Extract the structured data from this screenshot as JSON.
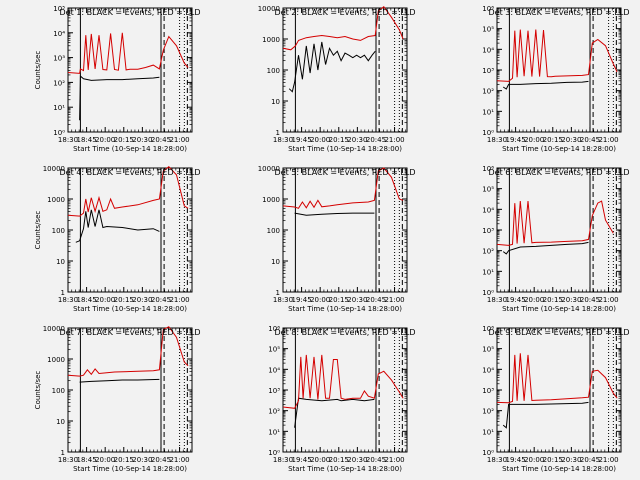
{
  "chart_data": [
    {
      "type": "line",
      "title": "Det 1: BLACK = Events, RED = LLD",
      "ylabel": "Counts/sec",
      "xlabel": "Start Time (10-Sep-14 18:28:00)",
      "yscale": "log",
      "ylim": [
        1,
        100000
      ],
      "ytick_labels": [
        "10⁰",
        "10¹",
        "10²",
        "10³",
        "10⁴",
        "10⁵"
      ],
      "ytick_values": [
        1,
        10,
        100,
        1000,
        10000,
        100000
      ],
      "xlim": [
        "18:30",
        "21:10"
      ],
      "xtick_labels": [
        "18:30",
        "18:45",
        "20:00",
        "20:15",
        "20:30",
        "20:45",
        "21:00"
      ],
      "series": [
        {
          "name": "Events",
          "color": "#000000",
          "x": [
            "18:45",
            "18:46",
            "18:50",
            "19:00",
            "19:20",
            "19:40",
            "20:00",
            "20:20",
            "20:28"
          ],
          "y": [
            3,
            180,
            140,
            120,
            130,
            130,
            140,
            150,
            160
          ]
        },
        {
          "name": "LLD",
          "color": "#d40000",
          "x": [
            "18:30",
            "18:45",
            "18:46",
            "18:50",
            "18:53",
            "18:56",
            "19:00",
            "19:05",
            "19:10",
            "19:15",
            "19:20",
            "19:25",
            "19:30",
            "19:35",
            "19:40",
            "19:45",
            "19:50",
            "20:00",
            "20:10",
            "20:20",
            "20:28",
            "20:33",
            "20:40",
            "20:50",
            "21:00",
            "21:05"
          ],
          "y": [
            250,
            230,
            350,
            300,
            8000,
            320,
            9000,
            350,
            8000,
            330,
            320,
            9500,
            330,
            310,
            10000,
            320,
            340,
            340,
            400,
            500,
            350,
            2000,
            7000,
            3000,
            600,
            400
          ]
        }
      ]
    },
    {
      "type": "line",
      "title": "Det 2: BLACK = Events, RED = LLD",
      "ylabel": "",
      "xlabel": "Start Time (10-Sep-14 18:28:00)",
      "yscale": "log",
      "ylim": [
        1,
        10000
      ],
      "ytick_labels": [
        "1",
        "10",
        "100",
        "1000",
        "10000"
      ],
      "ytick_values": [
        1,
        10,
        100,
        1000,
        10000
      ],
      "xlim": [
        "18:30",
        "21:10"
      ],
      "xtick_labels": [
        "18:30",
        "19:45",
        "20:00",
        "20:15",
        "20:30",
        "20:45",
        "21:00"
      ],
      "series": [
        {
          "name": "Events",
          "color": "#000000",
          "x": [
            "18:38",
            "18:42",
            "18:45",
            "18:50",
            "18:55",
            "19:00",
            "19:05",
            "19:10",
            "19:15",
            "19:20",
            "19:25",
            "19:30",
            "19:35",
            "19:40",
            "19:45",
            "19:50",
            "19:55",
            "20:00",
            "20:05",
            "20:10",
            "20:15",
            "20:20",
            "20:25",
            "20:29"
          ],
          "y": [
            25,
            20,
            40,
            300,
            50,
            600,
            80,
            700,
            100,
            800,
            150,
            500,
            300,
            400,
            200,
            350,
            300,
            250,
            300,
            250,
            300,
            200,
            300,
            400
          ]
        },
        {
          "name": "LLD",
          "color": "#d40000",
          "x": [
            "18:30",
            "18:40",
            "18:46",
            "18:50",
            "19:00",
            "19:10",
            "19:20",
            "19:30",
            "19:40",
            "19:50",
            "20:00",
            "20:10",
            "20:20",
            "20:29",
            "20:33",
            "20:40",
            "20:50",
            "21:00",
            "21:05"
          ],
          "y": [
            500,
            450,
            600,
            900,
            1100,
            1200,
            1300,
            1200,
            1100,
            1200,
            1000,
            900,
            1200,
            1300,
            8000,
            11000,
            5000,
            2000,
            1000
          ]
        }
      ]
    },
    {
      "type": "line",
      "title": "Det 3: BLACK = Events, RED = LLD",
      "ylabel": "",
      "xlabel": "Start Time (10-Sep-14 18:28:00)",
      "yscale": "log",
      "ylim": [
        1,
        1000000
      ],
      "ytick_labels": [
        "10⁰",
        "10¹",
        "10²",
        "10³",
        "10⁴",
        "10⁵",
        "10⁶"
      ],
      "ytick_values": [
        1,
        10,
        100,
        1000,
        10000,
        100000,
        1000000
      ],
      "xlim": [
        "18:30",
        "21:10"
      ],
      "xtick_labels": [
        "18:30",
        "19:45",
        "20:00",
        "20:15",
        "20:30",
        "20:45",
        "21:00"
      ],
      "series": [
        {
          "name": "Events",
          "color": "#000000",
          "x": [
            "18:38",
            "18:42",
            "18:45",
            "19:00",
            "19:20",
            "19:40",
            "20:00",
            "20:20",
            "20:28"
          ],
          "y": [
            150,
            120,
            200,
            200,
            220,
            230,
            250,
            260,
            280
          ]
        },
        {
          "name": "LLD",
          "color": "#d40000",
          "x": [
            "18:30",
            "18:45",
            "18:50",
            "18:53",
            "18:56",
            "19:00",
            "19:05",
            "19:10",
            "19:15",
            "19:20",
            "19:25",
            "19:30",
            "19:35",
            "19:40",
            "19:45",
            "20:00",
            "20:20",
            "20:28",
            "20:33",
            "20:40",
            "20:50",
            "21:00",
            "21:05"
          ],
          "y": [
            300,
            280,
            400,
            80000,
            450,
            90000,
            500,
            80000,
            480,
            90000,
            480,
            85000,
            480,
            470,
            500,
            520,
            550,
            600,
            20000,
            30000,
            15000,
            2000,
            800
          ]
        }
      ]
    },
    {
      "type": "line",
      "title": "Det 4: BLACK = Events, RED = LLD",
      "ylabel": "Counts/sec",
      "xlabel": "Start Time (10-Sep-14 18:28:00)",
      "yscale": "log",
      "ylim": [
        1,
        10000
      ],
      "ytick_labels": [
        "1",
        "10",
        "100",
        "1000",
        "10000"
      ],
      "ytick_values": [
        1,
        10,
        100,
        1000,
        10000
      ],
      "xlim": [
        "18:30",
        "21:10"
      ],
      "xtick_labels": [
        "18:30",
        "18:45",
        "20:00",
        "20:15",
        "20:30",
        "20:45",
        "21:00"
      ],
      "series": [
        {
          "name": "Events",
          "color": "#000000",
          "x": [
            "18:40",
            "18:45",
            "18:50",
            "18:53",
            "18:56",
            "19:00",
            "19:05",
            "19:10",
            "19:15",
            "19:20",
            "19:40",
            "20:00",
            "20:20",
            "20:28"
          ],
          "y": [
            40,
            45,
            110,
            400,
            120,
            450,
            130,
            450,
            120,
            130,
            120,
            100,
            110,
            90
          ]
        },
        {
          "name": "LLD",
          "color": "#d40000",
          "x": [
            "18:30",
            "18:45",
            "18:50",
            "18:53",
            "18:56",
            "19:00",
            "19:05",
            "19:10",
            "19:15",
            "19:20",
            "19:25",
            "19:30",
            "19:40",
            "20:00",
            "20:20",
            "20:28",
            "20:33",
            "20:40",
            "20:50",
            "21:00",
            "21:05"
          ],
          "y": [
            300,
            280,
            350,
            1000,
            380,
            1100,
            400,
            1100,
            400,
            450,
            1000,
            500,
            550,
            650,
            900,
            1000,
            8000,
            11000,
            6000,
            600,
            500
          ]
        }
      ]
    },
    {
      "type": "line",
      "title": "Det 5: BLACK = Events, RED = LLD",
      "ylabel": "",
      "xlabel": "Start Time (10-Sep-14 18:28:00)",
      "yscale": "log",
      "ylim": [
        1,
        10000
      ],
      "ytick_labels": [
        "1",
        "10",
        "100",
        "1000",
        "10000"
      ],
      "ytick_values": [
        1,
        10,
        100,
        1000,
        10000
      ],
      "xlim": [
        "18:30",
        "21:10"
      ],
      "xtick_labels": [
        "18:30",
        "19:45",
        "20:00",
        "20:15",
        "20:30",
        "20:45",
        "21:00"
      ],
      "series": [
        {
          "name": "Events",
          "color": "#000000",
          "x": [
            "18:45",
            "19:00",
            "19:20",
            "19:40",
            "20:00",
            "20:28"
          ],
          "y": [
            350,
            300,
            320,
            340,
            350,
            350
          ]
        },
        {
          "name": "LLD",
          "color": "#d40000",
          "x": [
            "18:30",
            "18:45",
            "18:50",
            "18:55",
            "19:00",
            "19:05",
            "19:10",
            "19:15",
            "19:20",
            "19:30",
            "19:40",
            "20:00",
            "20:20",
            "20:28",
            "20:33",
            "20:40",
            "20:50",
            "21:00",
            "21:05"
          ],
          "y": [
            600,
            550,
            500,
            800,
            520,
            850,
            540,
            900,
            560,
            600,
            650,
            750,
            800,
            900,
            8000,
            10000,
            5000,
            1000,
            900
          ]
        }
      ]
    },
    {
      "type": "line",
      "title": "Det 6: BLACK = Events, RED = LLD",
      "ylabel": "",
      "xlabel": "Start Time (10-Sep-14 18:28:00)",
      "yscale": "log",
      "ylim": [
        1,
        1000000
      ],
      "ytick_labels": [
        "10⁰",
        "10¹",
        "10²",
        "10³",
        "10⁴",
        "10⁵",
        "10⁶"
      ],
      "ytick_values": [
        1,
        10,
        100,
        1000,
        10000,
        100000,
        1000000
      ],
      "xlim": [
        "18:30",
        "21:10"
      ],
      "xtick_labels": [
        "18:30",
        "19:45",
        "20:00",
        "20:15",
        "20:30",
        "20:45",
        "21:00"
      ],
      "series": [
        {
          "name": "Events",
          "color": "#000000",
          "x": [
            "18:38",
            "18:42",
            "18:45",
            "19:00",
            "19:20",
            "19:40",
            "20:00",
            "20:20",
            "20:28"
          ],
          "y": [
            90,
            70,
            100,
            150,
            160,
            180,
            200,
            220,
            250
          ]
        },
        {
          "name": "LLD",
          "color": "#d40000",
          "x": [
            "18:30",
            "18:45",
            "18:50",
            "18:53",
            "18:56",
            "19:00",
            "19:05",
            "19:10",
            "19:15",
            "19:20",
            "19:40",
            "20:00",
            "20:20",
            "20:28",
            "20:33",
            "20:40",
            "20:45",
            "20:50",
            "21:00"
          ],
          "y": [
            200,
            180,
            200,
            20000,
            220,
            25000,
            230,
            25000,
            240,
            250,
            260,
            280,
            300,
            350,
            5000,
            20000,
            25000,
            3000,
            700
          ]
        }
      ]
    },
    {
      "type": "line",
      "title": "Det 7: BLACK = Events, RED = LLD",
      "ylabel": "Counts/sec",
      "xlabel": "Start Time (10-Sep-14 18:28:00)",
      "yscale": "log",
      "ylim": [
        1,
        10000
      ],
      "ytick_labels": [
        "1",
        "10",
        "100",
        "1000",
        "10000"
      ],
      "ytick_values": [
        1,
        10,
        100,
        1000,
        10000
      ],
      "xlim": [
        "18:30",
        "21:10"
      ],
      "xtick_labels": [
        "18:30",
        "18:45",
        "20:00",
        "20:15",
        "20:30",
        "20:45",
        "21:00"
      ],
      "series": [
        {
          "name": "Events",
          "color": "#000000",
          "x": [
            "18:45",
            "19:00",
            "19:20",
            "19:40",
            "20:00",
            "20:28"
          ],
          "y": [
            180,
            190,
            200,
            210,
            210,
            220
          ]
        },
        {
          "name": "LLD",
          "color": "#d40000",
          "x": [
            "18:30",
            "18:45",
            "18:50",
            "18:55",
            "19:00",
            "19:05",
            "19:10",
            "19:20",
            "19:30",
            "20:00",
            "20:20",
            "20:28",
            "20:33",
            "20:40",
            "20:50",
            "21:00",
            "21:05"
          ],
          "y": [
            300,
            280,
            300,
            450,
            320,
            480,
            340,
            360,
            380,
            400,
            420,
            450,
            9000,
            11000,
            5000,
            800,
            600
          ]
        }
      ]
    },
    {
      "type": "line",
      "title": "Det 8: BLACK = Events, RED = LLD",
      "ylabel": "",
      "xlabel": "Start Time (10-Sep-14 18:28:00)",
      "yscale": "log",
      "ylim": [
        1,
        1000000
      ],
      "ytick_labels": [
        "10⁰",
        "10¹",
        "10²",
        "10³",
        "10⁴",
        "10⁵",
        "10⁶"
      ],
      "ytick_values": [
        1,
        10,
        100,
        1000,
        10000,
        100000,
        1000000
      ],
      "xlim": [
        "18:30",
        "21:10"
      ],
      "xtick_labels": [
        "18:30",
        "19:45",
        "20:00",
        "20:15",
        "20:30",
        "20:45",
        "21:00"
      ],
      "series": [
        {
          "name": "Events",
          "color": "#000000",
          "x": [
            "18:45",
            "18:50",
            "19:00",
            "19:20",
            "19:40",
            "19:45",
            "20:00",
            "20:15",
            "20:28"
          ],
          "y": [
            15,
            400,
            350,
            300,
            350,
            300,
            350,
            300,
            350
          ]
        },
        {
          "name": "LLD",
          "color": "#d40000",
          "x": [
            "18:30",
            "18:45",
            "18:50",
            "18:53",
            "18:56",
            "19:00",
            "19:05",
            "19:10",
            "19:15",
            "19:20",
            "19:25",
            "19:30",
            "19:35",
            "19:40",
            "19:45",
            "19:50",
            "20:00",
            "20:10",
            "20:15",
            "20:20",
            "20:28",
            "20:33",
            "20:40",
            "20:50",
            "21:00",
            "21:05"
          ],
          "y": [
            150,
            130,
            300,
            40000,
            400,
            50000,
            400,
            40000,
            350,
            50000,
            400,
            400,
            30000,
            30000,
            400,
            350,
            400,
            400,
            900,
            500,
            400,
            6000,
            8000,
            3000,
            800,
            400
          ]
        }
      ]
    },
    {
      "type": "line",
      "title": "Det 9: BLACK = Events, RED = LLD",
      "ylabel": "",
      "xlabel": "Start Time (10-Sep-14 18:28:00)",
      "yscale": "log",
      "ylim": [
        1,
        1000000
      ],
      "ytick_labels": [
        "10⁰",
        "10¹",
        "10²",
        "10³",
        "10⁴",
        "10⁵",
        "10⁶"
      ],
      "ytick_values": [
        1,
        10,
        100,
        1000,
        10000,
        100000,
        1000000
      ],
      "xlim": [
        "18:30",
        "21:10"
      ],
      "xtick_labels": [
        "18:30",
        "19:45",
        "20:00",
        "20:15",
        "20:30",
        "20:45",
        "21:00"
      ],
      "series": [
        {
          "name": "Events",
          "color": "#000000",
          "x": [
            "18:38",
            "18:42",
            "18:45",
            "19:00",
            "19:20",
            "19:40",
            "20:00",
            "20:20",
            "20:28"
          ],
          "y": [
            20,
            15,
            200,
            200,
            200,
            210,
            220,
            230,
            250
          ]
        },
        {
          "name": "LLD",
          "color": "#d40000",
          "x": [
            "18:30",
            "18:45",
            "18:50",
            "18:53",
            "18:56",
            "19:00",
            "19:05",
            "19:10",
            "19:15",
            "19:20",
            "19:40",
            "20:00",
            "20:20",
            "20:28",
            "20:33",
            "20:40",
            "20:50",
            "21:00",
            "21:05"
          ],
          "y": [
            250,
            240,
            280,
            50000,
            300,
            60000,
            300,
            50000,
            310,
            320,
            340,
            380,
            420,
            450,
            8000,
            9000,
            4000,
            700,
            400
          ]
        }
      ]
    }
  ]
}
